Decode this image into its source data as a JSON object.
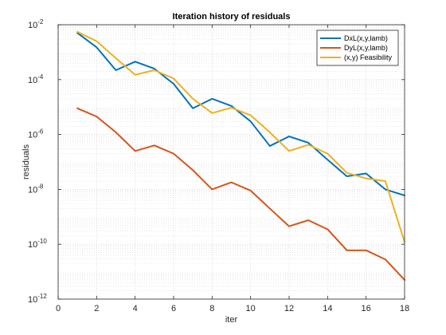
{
  "chart_data": {
    "type": "line",
    "title": "Iteration history of residuals",
    "xlabel": "iter",
    "ylabel": "residuals",
    "xlim": [
      0,
      18
    ],
    "ylim": [
      1e-12,
      0.01
    ],
    "yscale": "log",
    "xticks": [
      0,
      2,
      4,
      6,
      8,
      10,
      12,
      14,
      16,
      18
    ],
    "yticks": [
      {
        "value": 1e-12,
        "base": "10",
        "exp": "-12"
      },
      {
        "value": 1e-10,
        "base": "10",
        "exp": "-10"
      },
      {
        "value": 1e-08,
        "base": "10",
        "exp": "-8"
      },
      {
        "value": 1e-06,
        "base": "10",
        "exp": "-6"
      },
      {
        "value": 0.0001,
        "base": "10",
        "exp": "-4"
      },
      {
        "value": 0.01,
        "base": "10",
        "exp": "-2"
      }
    ],
    "grid": true,
    "minor_grid": true,
    "legend_position": "top-right",
    "x": [
      1,
      2,
      3,
      4,
      5,
      6,
      7,
      8,
      9,
      10,
      11,
      12,
      13,
      14,
      15,
      16,
      17,
      18
    ],
    "series": [
      {
        "name": "DxL(x,y,lamb)",
        "color": "#0072BD",
        "values": [
          0.005,
          0.0015,
          0.00022,
          0.00045,
          0.00025,
          7e-05,
          9e-06,
          2e-05,
          1.1e-05,
          3e-06,
          3.8e-07,
          8.5e-07,
          5e-07,
          1.2e-07,
          3e-08,
          3.8e-08,
          1e-08,
          6e-09
        ]
      },
      {
        "name": "DyL(x,y,lamb)",
        "color": "#D95319",
        "values": [
          9e-06,
          4.5e-06,
          1.2e-06,
          2.5e-07,
          4e-07,
          2e-07,
          5e-08,
          1e-08,
          1.8e-08,
          9e-09,
          2e-09,
          4.5e-10,
          7.5e-10,
          3.5e-10,
          6e-11,
          6e-11,
          2.8e-11,
          5e-12
        ]
      },
      {
        "name": "(x,y) Feasibility",
        "color": "#EDB120",
        "values": [
          0.0055,
          0.0025,
          0.0006,
          0.00015,
          0.00022,
          0.00011,
          2e-05,
          6e-06,
          9.5e-06,
          5e-06,
          1.2e-06,
          2.5e-07,
          4.2e-07,
          2e-07,
          4e-08,
          2.5e-08,
          2e-08,
          1.2e-10
        ]
      }
    ]
  }
}
